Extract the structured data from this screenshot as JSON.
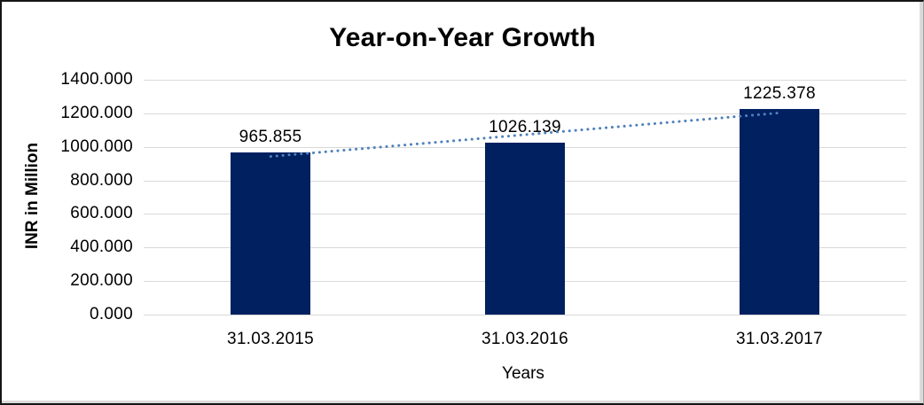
{
  "chart_data": {
    "type": "bar",
    "title": "Year-on-Year Growth",
    "categories": [
      "31.03.2015",
      "31.03.2016",
      "31.03.2017"
    ],
    "values": [
      965.855,
      1026.139,
      1225.378
    ],
    "data_labels": [
      "965.855",
      "1026.139",
      "1225.378"
    ],
    "xlabel": "Years",
    "ylabel": "INR in Million",
    "ylim": [
      0,
      1400
    ],
    "ytick_step": 200,
    "ytick_labels": [
      "0.000",
      "200.000",
      "400.000",
      "600.000",
      "800.000",
      "1000.000",
      "1200.000",
      "1400.000"
    ],
    "grid": true,
    "legend": "none",
    "colors": {
      "bar": "#002060",
      "trendline": "#4f81bd",
      "gridline": "#d9d9d9",
      "text": "#000000"
    },
    "trendline": {
      "type": "linear",
      "style": "dotted"
    }
  }
}
